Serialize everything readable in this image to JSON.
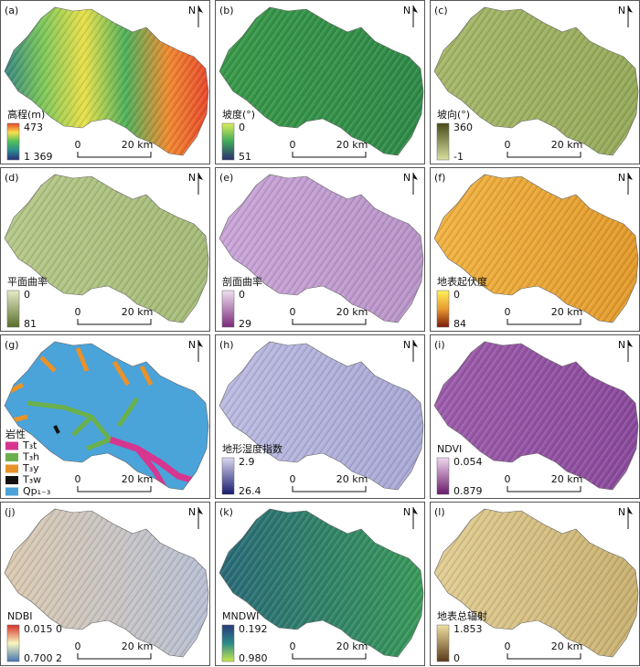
{
  "north": "N",
  "scale_bar": {
    "start": "0",
    "end": "20 km"
  },
  "panels": [
    {
      "label": "(a)",
      "legend_title": "高程(m)",
      "legend_max": "473",
      "legend_min": "1 369",
      "colors": [
        "#e8452c",
        "#f6e04b",
        "#4fbf5a",
        "#2a8a8f",
        "#2b2f7c"
      ],
      "map": [
        "#2e7f86",
        "#7cc65a",
        "#e8e04a",
        "#4fb05a",
        "#f08a30",
        "#e8452c"
      ]
    },
    {
      "label": "(b)",
      "legend_title": "坡度(°)",
      "legend_max": "0",
      "legend_min": "51",
      "colors": [
        "#d9ef5a",
        "#3fa85a",
        "#2a2f6e"
      ],
      "map": [
        "#3a9a4a",
        "#2f8a48"
      ]
    },
    {
      "label": "(c)",
      "legend_title": "坡向(°)",
      "legend_max": "360",
      "legend_min": "-1",
      "colors": [
        "#4a4a1a",
        "#d8e0a0"
      ],
      "map": [
        "#a6b86a",
        "#95aa5a"
      ]
    },
    {
      "label": "(d)",
      "legend_title": "平面曲率",
      "legend_max": "0",
      "legend_min": "81",
      "colors": [
        "#e5ecc8",
        "#5a6e2a"
      ],
      "map": [
        "#b6c98a",
        "#a5bb78"
      ]
    },
    {
      "label": "(e)",
      "legend_title": "剖面曲率",
      "legend_max": "0",
      "legend_min": "29",
      "colors": [
        "#f0e0f0",
        "#7a2a7a"
      ],
      "map": [
        "#caa6d8",
        "#b894c8"
      ]
    },
    {
      "label": "(f)",
      "legend_title": "地表起伏度",
      "legend_max": "0",
      "legend_min": "84",
      "colors": [
        "#fff25a",
        "#e89a30",
        "#7a1a0a"
      ],
      "map": [
        "#f2b444",
        "#e29a2c"
      ]
    },
    {
      "label": "(g)",
      "legend_title": "岩性",
      "items": [
        {
          "name": "T₃t",
          "color": "#d6368f"
        },
        {
          "name": "T₃h",
          "color": "#6ab04c"
        },
        {
          "name": "T₃y",
          "color": "#e8922a"
        },
        {
          "name": "T₃w",
          "color": "#111111"
        },
        {
          "name": "Qp₁₋₃",
          "color": "#4aa3d9"
        }
      ]
    },
    {
      "label": "(h)",
      "legend_title": "地形湿度指数",
      "legend_max": "2.9",
      "legend_min": "26.4",
      "colors": [
        "#d8d8f0",
        "#1a1a6e"
      ],
      "map": [
        "#bcbce2",
        "#a8a8d6"
      ]
    },
    {
      "label": "(i)",
      "legend_title": "NDVI",
      "legend_max": "0.054",
      "legend_min": "0.879",
      "colors": [
        "#f0d8f0",
        "#6a1a6a"
      ],
      "map": [
        "#9e5eac",
        "#8a4a9c"
      ]
    },
    {
      "label": "(j)",
      "legend_title": "NDBI",
      "legend_max": "0.015 0",
      "legend_min": "0.700 2",
      "colors": [
        "#d73027",
        "#f7f7c0",
        "#4575b4"
      ],
      "map": [
        "#dccab0",
        "#b8c0d4"
      ]
    },
    {
      "label": "(k)",
      "legend_title": "MNDWI",
      "legend_max": "0.192",
      "legend_min": "0.980",
      "colors": [
        "#2a3a7a",
        "#2a8a8a",
        "#c8e84a"
      ],
      "map": [
        "#2a6a7a",
        "#3a9a5a"
      ]
    },
    {
      "label": "(l)",
      "legend_title": "地表总辐射",
      "legend_max": "1.853",
      "legend_min": "0",
      "colors": [
        "#f0e0a0",
        "#5a3a1a"
      ],
      "map": [
        "#e2ce94",
        "#c8b070"
      ]
    }
  ]
}
